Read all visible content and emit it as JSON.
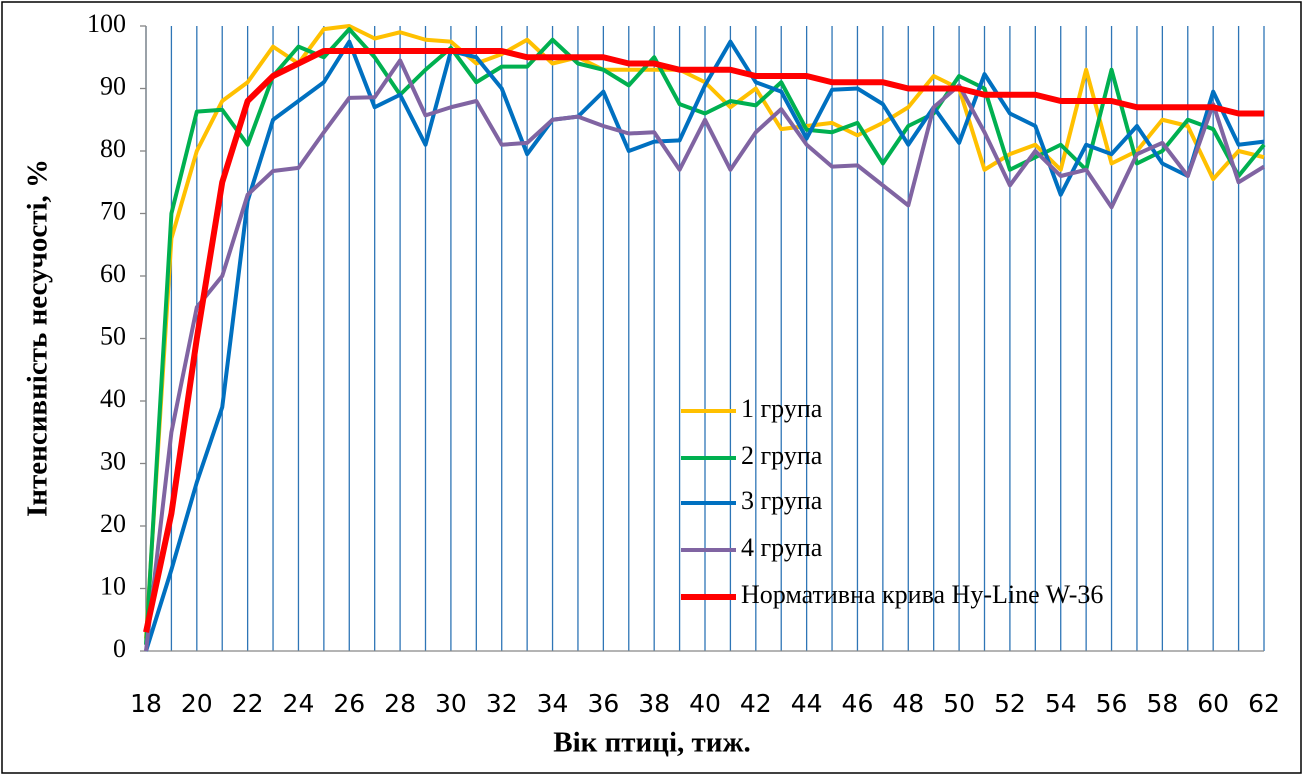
{
  "chart_data": {
    "type": "line",
    "y_label": "Інтенсивність несучості, %",
    "x_label": "Вік птиці, тиж.",
    "x": [
      18,
      19,
      20,
      21,
      22,
      23,
      24,
      25,
      26,
      27,
      28,
      29,
      30,
      31,
      32,
      33,
      34,
      35,
      36,
      37,
      38,
      39,
      40,
      41,
      42,
      43,
      44,
      45,
      46,
      47,
      48,
      49,
      50,
      51,
      52,
      53,
      54,
      55,
      56,
      57,
      58,
      59,
      60,
      61,
      62
    ],
    "xlim": [
      18,
      62
    ],
    "xticks": [
      18,
      20,
      22,
      24,
      26,
      28,
      30,
      32,
      34,
      36,
      38,
      40,
      42,
      44,
      46,
      48,
      50,
      52,
      54,
      56,
      58,
      60,
      62
    ],
    "ylim": [
      0,
      100
    ],
    "yticks": [
      0,
      10,
      20,
      30,
      40,
      50,
      60,
      70,
      80,
      90,
      100
    ],
    "grid": true,
    "series": [
      {
        "name": "1 група",
        "color": "#FFC000",
        "values": [
          2,
          66,
          80,
          88,
          91,
          96.7,
          94,
          99.5,
          100,
          98,
          99,
          97.8,
          97.5,
          94,
          95.5,
          97.8,
          94,
          95,
          93,
          93,
          93,
          93,
          91,
          87,
          90,
          83.5,
          84,
          84.5,
          82.5,
          84.5,
          87,
          92,
          90,
          77,
          79.5,
          81,
          77,
          93,
          78,
          80,
          85,
          84,
          75.5,
          80,
          79
        ]
      },
      {
        "name": "2 група",
        "color": "#00B050",
        "values": [
          1,
          70,
          86.3,
          86.6,
          81,
          92,
          96.7,
          95,
          99.5,
          95,
          89,
          93,
          96.5,
          91,
          93.5,
          93.5,
          97.8,
          94,
          93,
          90.5,
          95,
          87.5,
          86,
          88,
          87.3,
          91,
          83.4,
          83,
          84.5,
          78,
          84,
          86,
          92,
          90,
          77,
          79,
          81,
          77,
          93,
          78,
          80,
          85,
          83.5,
          76,
          81
        ]
      },
      {
        "name": "3 група",
        "color": "#0070C0",
        "values": [
          0,
          13,
          27,
          39,
          72,
          85,
          88,
          91,
          97.5,
          87,
          89,
          81,
          96,
          95,
          90,
          79.5,
          85,
          85.5,
          89.5,
          80,
          81.5,
          81.7,
          90.5,
          97.5,
          91,
          89.5,
          82,
          89.8,
          90,
          87.5,
          81,
          87,
          81.3,
          92.3,
          86,
          84,
          73,
          81,
          79.5,
          84,
          78,
          76,
          89.5,
          81,
          81.5
        ]
      },
      {
        "name": "4 група",
        "color": "#8064A2",
        "values": [
          0,
          35,
          55,
          60,
          73,
          76.8,
          77.3,
          83,
          88.5,
          88.6,
          94.5,
          85.7,
          87,
          88,
          81,
          81.3,
          85,
          85.5,
          84,
          82.8,
          83,
          77,
          85,
          77,
          83,
          86.7,
          81,
          77.5,
          77.7,
          74.5,
          71.3,
          87,
          90.5,
          83,
          74.5,
          80,
          76,
          77,
          71,
          79.5,
          81.3,
          76,
          87.5,
          75,
          77.5
        ]
      },
      {
        "name": "Нормативна крива Hy-Line W-36",
        "color": "#FF0000",
        "values": [
          3,
          22,
          50,
          75,
          88,
          92,
          94,
          96,
          96,
          96,
          96,
          96,
          96,
          96,
          96,
          95,
          95,
          95,
          95,
          94,
          94,
          93,
          93,
          93,
          92,
          92,
          92,
          91,
          91,
          91,
          90,
          90,
          90,
          89,
          89,
          89,
          88,
          88,
          88,
          87,
          87,
          87,
          87,
          86,
          86
        ]
      }
    ]
  }
}
